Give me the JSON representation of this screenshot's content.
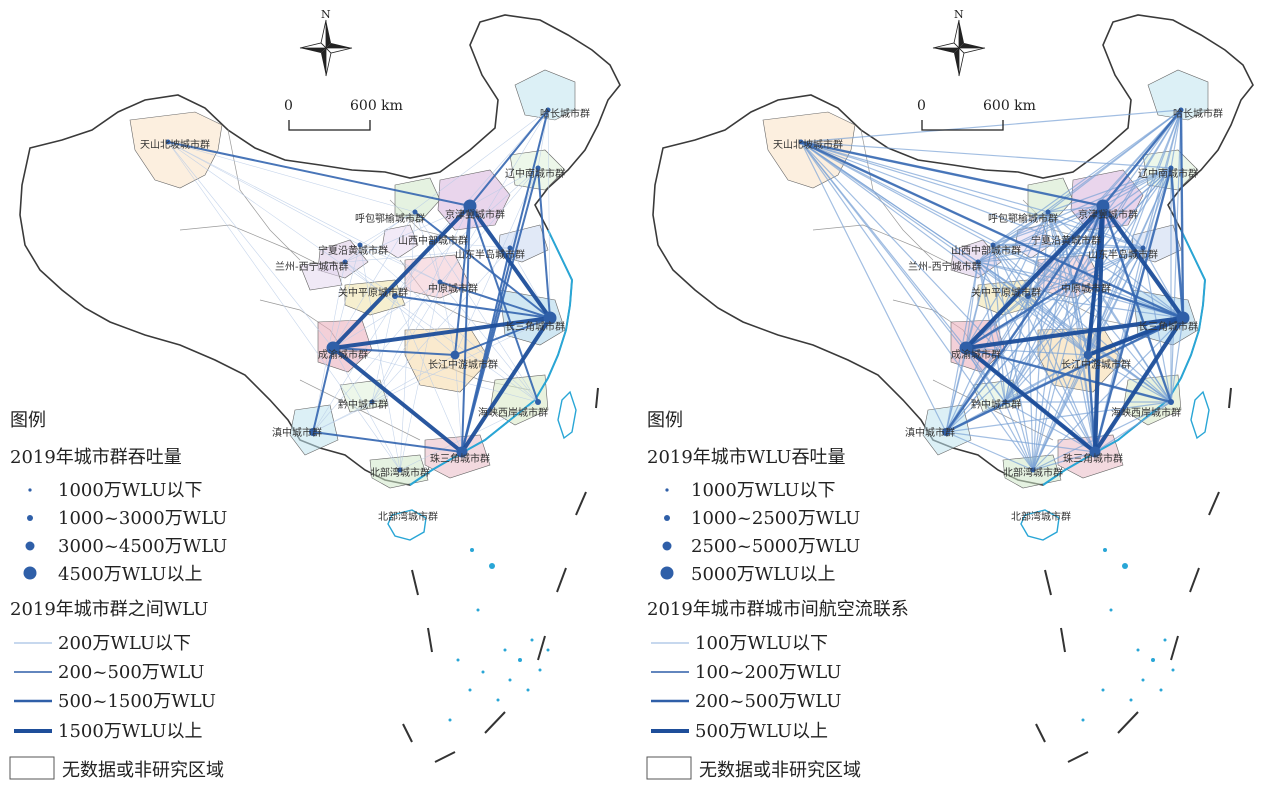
{
  "panels": [
    {
      "north_label": "N",
      "scale": {
        "zero": "0",
        "max": "600 km"
      },
      "legend": {
        "title": "图例",
        "nodes_title": "2019年城市群吞吐量",
        "nodes": [
          "1000万WLU以下",
          "1000~3000万WLU",
          "3000~4500万WLU",
          "4500万WLU以上"
        ],
        "links_title": "2019年城市群之间WLU",
        "links": [
          "200万WLU以下",
          "200~500万WLU",
          "500~1500万WLU",
          "1500万WLU以上"
        ],
        "nodata": "无数据或非研究区域"
      },
      "labels": [
        "天山北坡城市群",
        "哈长城市群",
        "辽中南城市群",
        "呼包鄂榆城市群",
        "京津冀城市群",
        "山西中部城市群",
        "宁夏沿黄城市群",
        "山东半岛城市群",
        "兰州-西宁城市群",
        "中原城市群",
        "关中平原城市群",
        "长三角城市群",
        "成渝城市群",
        "长江中游城市群",
        "黔中城市群",
        "海峡西岸城市群",
        "滇中城市群",
        "珠三角城市群",
        "北部湾城市群",
        "北部湾城市群"
      ]
    },
    {
      "north_label": "N",
      "scale": {
        "zero": "0",
        "max": "600 km"
      },
      "legend": {
        "title": "图例",
        "nodes_title": "2019年城市WLU吞吐量",
        "nodes": [
          "1000万WLU以下",
          "1000~2500万WLU",
          "2500~5000万WLU",
          "5000万WLU以上"
        ],
        "links_title": "2019年城市群城市间航空流联系",
        "links": [
          "100万WLU以下",
          "100~200万WLU",
          "200~500万WLU",
          "500万WLU以上"
        ],
        "nodata": "无数据或非研究区域"
      },
      "labels": [
        "天山北坡城市群",
        "哈长城市群",
        "辽中南城市群",
        "呼包鄂榆城市群",
        "京津冀城市群",
        "宁夏沿黄城市群",
        "山西中部城市群",
        "山东半岛城市群",
        "兰州-西宁城市群",
        "中原城市群",
        "关中平原城市群",
        "长三角城市群",
        "成渝城市群",
        "长江中游城市群",
        "黔中城市群",
        "海峡西岸城市群",
        "滇中城市群",
        "珠三角城市群",
        "北部湾城市群",
        "北部湾城市群"
      ]
    }
  ],
  "colors": {
    "link": "#2f5fa8",
    "link_light": "#8fb0dc",
    "node": "#2f5fa8",
    "border": "#444444",
    "coast": "#29a6d6"
  }
}
